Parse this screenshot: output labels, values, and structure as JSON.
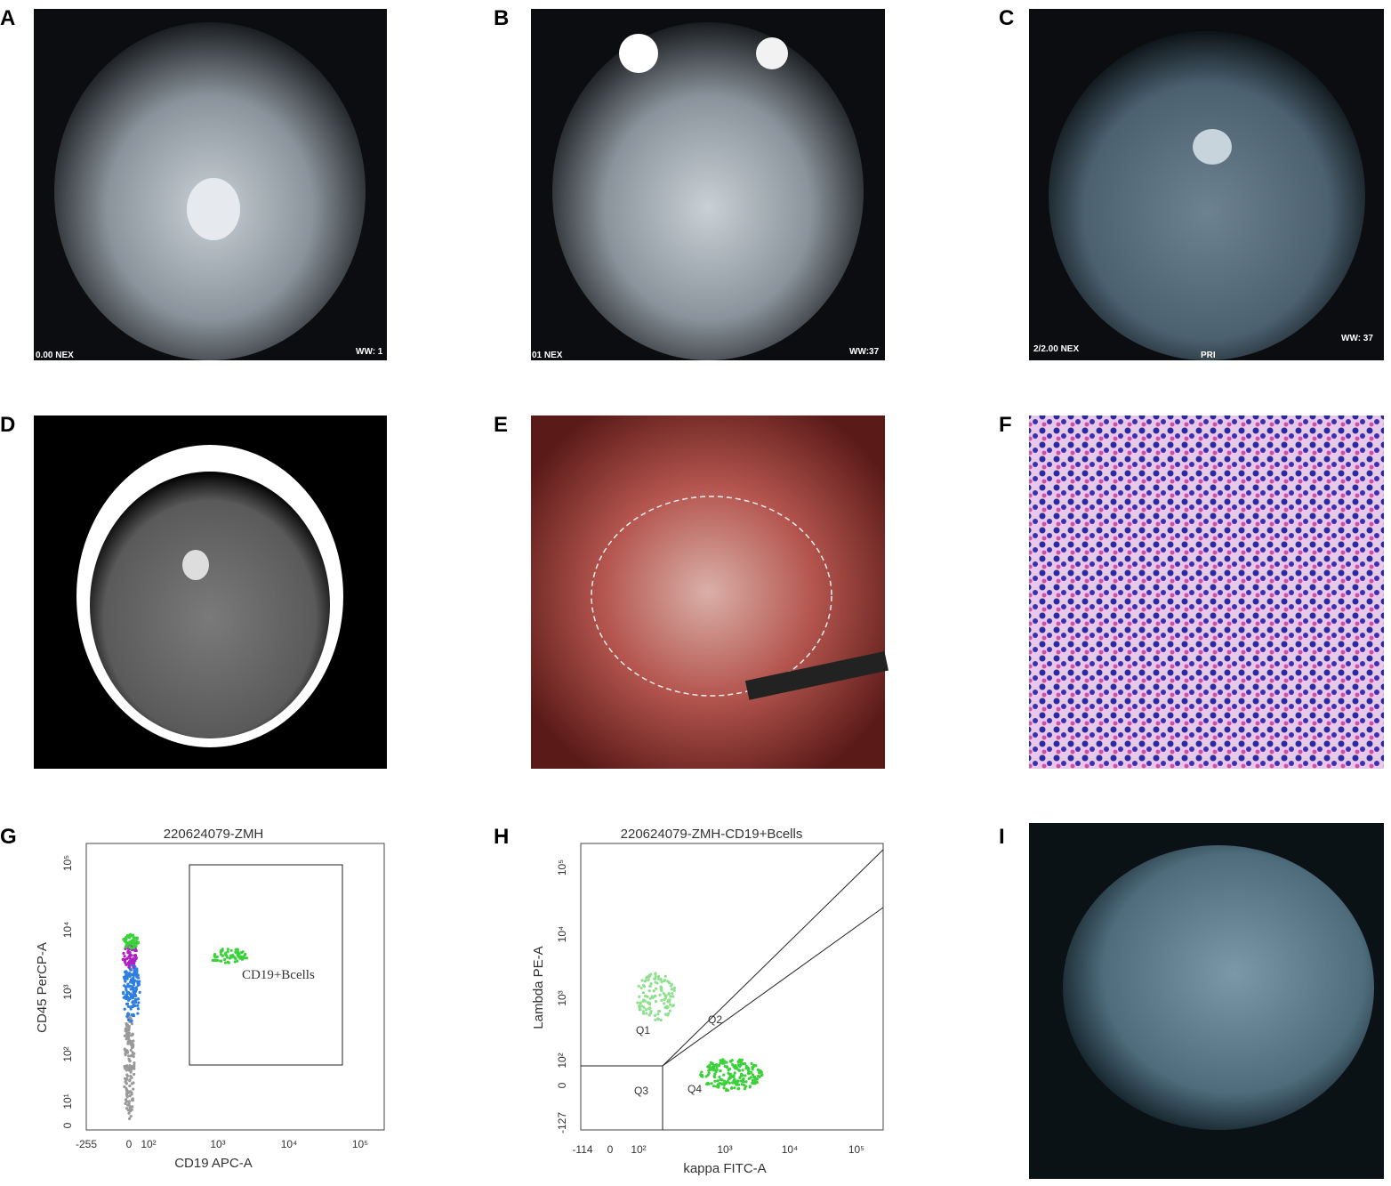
{
  "panels": [
    {
      "letter": "A",
      "overlay": [
        "WW: 1",
        "0.00 NEX"
      ]
    },
    {
      "letter": "B",
      "overlay": [
        "WW:37",
        "01 NEX"
      ]
    },
    {
      "letter": "C",
      "overlay": [
        "WW: 37",
        "2/2.00 NEX",
        "PRI"
      ]
    },
    {
      "letter": "D"
    },
    {
      "letter": "E"
    },
    {
      "letter": "F"
    },
    {
      "letter": "G",
      "title": "220624079-ZMH",
      "x_label": "CD19 APC-A",
      "y_label": "CD45 PerCP-A",
      "gate_label": "CD19+Bcells",
      "xticks": [
        "-255",
        "0",
        "10²",
        "10³",
        "10⁴",
        "10⁵"
      ],
      "yticks": [
        "0",
        "10¹",
        "10²",
        "10³",
        "10⁴",
        "10⁵"
      ]
    },
    {
      "letter": "H",
      "title": "220624079-ZMH-CD19+Bcells",
      "x_label": "kappa FITC-A",
      "y_label": "Lambda PE-A",
      "quadrants": [
        "Q1",
        "Q2",
        "Q3",
        "Q4"
      ],
      "xticks": [
        "-114",
        "0",
        "10²",
        "10³",
        "10⁴",
        "10⁵"
      ],
      "yticks": [
        "-127",
        "0",
        "10²",
        "10³",
        "10⁴",
        "10⁵"
      ]
    },
    {
      "letter": "I"
    }
  ]
}
